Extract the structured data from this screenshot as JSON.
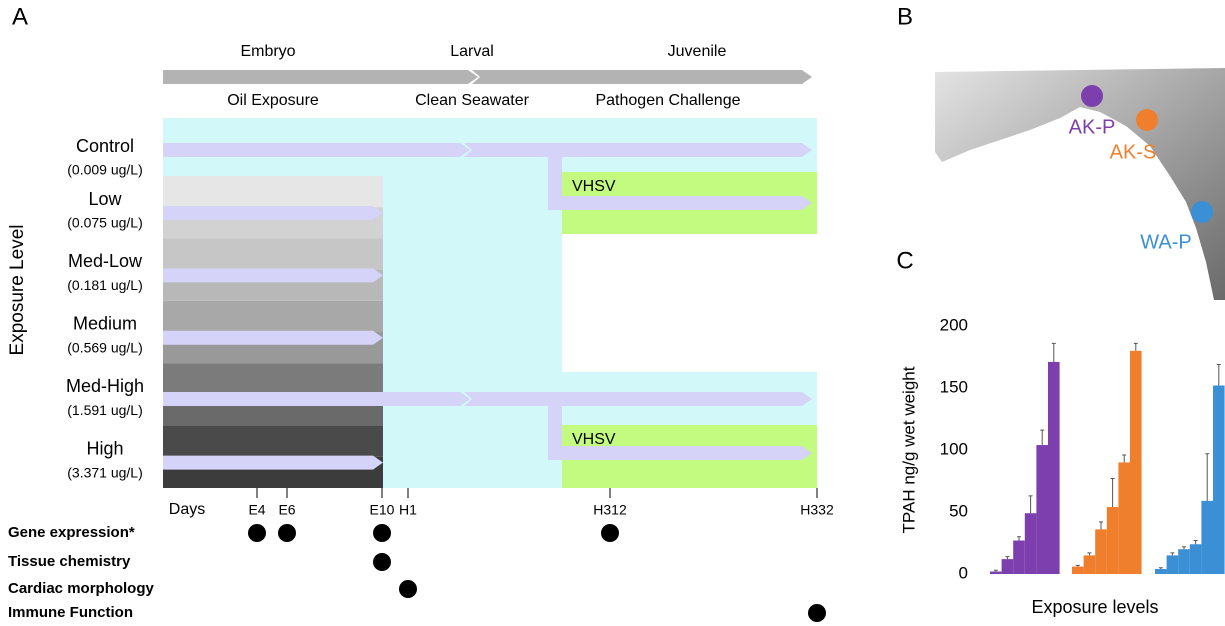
{
  "panel_labels": [
    "A",
    "B",
    "C"
  ],
  "stages": [
    "Embryo",
    "Larval",
    "Juvenile"
  ],
  "treatments": [
    "Oil Exposure",
    "Clean Seawater",
    "Pathogen Challenge"
  ],
  "y_axis_label": "Exposure Level",
  "exposure_levels": [
    {
      "name": "Control",
      "concentration": "(0.009 ug/L)"
    },
    {
      "name": "Low",
      "concentration": "(0.075 ug/L)"
    },
    {
      "name": "Med-Low",
      "concentration": "(0.181 ug/L)"
    },
    {
      "name": "Medium",
      "concentration": "(0.569 ug/L)"
    },
    {
      "name": "Med-High",
      "concentration": "(1.591 ug/L)"
    },
    {
      "name": "High",
      "concentration": "(3.371 ug/L)"
    }
  ],
  "pathogen_labels": [
    "VHSV",
    "VHSV"
  ],
  "timeline": {
    "label": "Days",
    "points": [
      "E4",
      "E6",
      "E10",
      "H1",
      "H312",
      "H332"
    ]
  },
  "endpoints": [
    "Gene expression*",
    "Tissue chemistry",
    "Cardiac morphology",
    "Immune Function"
  ],
  "chart_data": {
    "type": "bar",
    "y_label": "TPAH ng/g wet weight",
    "x_label": "Exposure levels",
    "categories": [
      null,
      null,
      null,
      null,
      null,
      null
    ],
    "ylim": [
      0,
      200
    ],
    "yticks": [
      0,
      50,
      100,
      150,
      200
    ],
    "series": [
      {
        "name": "AK-P",
        "color": "#7d3fae",
        "values": [
          2,
          12,
          27,
          49,
          104,
          171
        ],
        "errors": [
          1,
          2,
          3,
          14,
          12,
          15
        ]
      },
      {
        "name": "AK-S",
        "color": "#ef7f2d",
        "values": [
          6,
          15,
          36,
          54,
          90,
          180
        ],
        "errors": [
          1,
          2,
          6,
          23,
          6,
          6
        ]
      },
      {
        "name": "WA-P",
        "color": "#3b8fd5",
        "values": [
          4,
          15,
          20,
          24,
          59,
          152
        ],
        "errors": [
          1,
          2,
          2,
          3,
          38,
          17
        ]
      }
    ]
  }
}
